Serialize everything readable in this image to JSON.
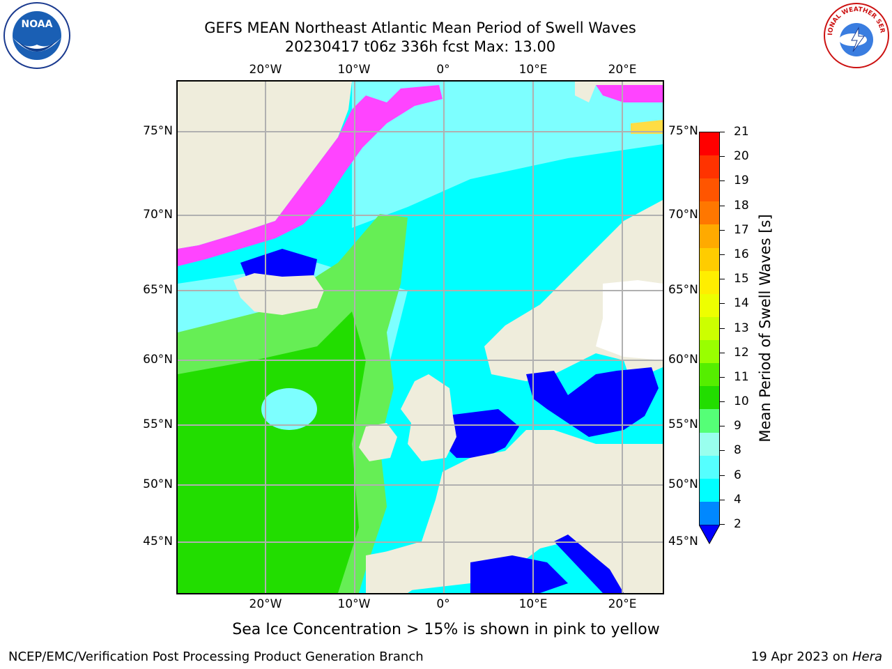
{
  "header": {
    "title_line1": "GEFS MEAN Northeast Atlantic Mean Period of Swell Waves",
    "title_line2": "20230417 t06z 336h fcst   Max: 13.00"
  },
  "map": {
    "lon_ticks": [
      "20°W",
      "10°W",
      "0°",
      "10°E",
      "20°E"
    ],
    "lat_ticks": [
      "75°N",
      "70°N",
      "65°N",
      "60°N",
      "55°N",
      "50°N",
      "45°N"
    ],
    "colors": {
      "land": "#efeddc",
      "ocean_low": "#00ffff",
      "ocean_mid": "#7dffff",
      "ocean_swell": "#22dd00",
      "ocean_swell_light": "#66ee55",
      "enclosed_sea": "#0000ff",
      "ice_edge": "#ff44ff",
      "ice_inner": "#ffdd44",
      "grid": "#b0b0b0"
    }
  },
  "colorbar": {
    "title": "Mean Period of Swell Waves [s]",
    "labels": [
      "21",
      "20",
      "19",
      "18",
      "17",
      "16",
      "15",
      "14",
      "13",
      "12",
      "11",
      "10",
      "9",
      "8",
      "6",
      "4",
      "2"
    ],
    "colors": [
      "#ff0000",
      "#ff3300",
      "#ff5500",
      "#ff7700",
      "#ffaa00",
      "#ffcc00",
      "#ffee00",
      "#eeff00",
      "#ccff00",
      "#99ff00",
      "#55ee00",
      "#22dd00",
      "#55ff77",
      "#99ffee",
      "#55ffff",
      "#00ffff",
      "#0088ff"
    ],
    "extend_color": "#0000ff"
  },
  "notes": {
    "ice": "Sea Ice Concentration > 15% is shown in pink to yellow"
  },
  "footer": {
    "left": "NCEP/EMC/Verification Post Processing Product Generation Branch",
    "right_date": "19 Apr 2023 on ",
    "right_host": "Hera"
  },
  "logos": {
    "noaa_text": "NOAA",
    "nws_text": "NATIONAL WEATHER SERVICE"
  }
}
